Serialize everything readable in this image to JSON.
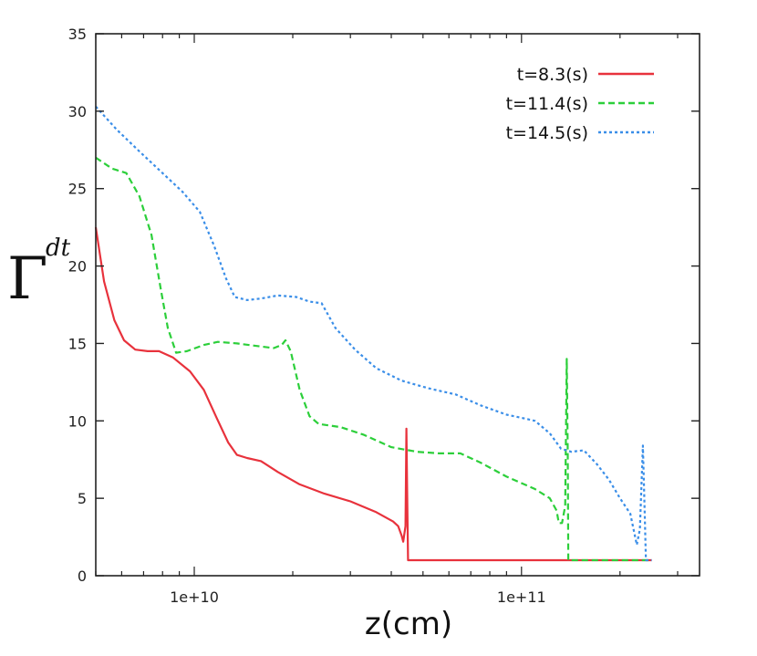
{
  "chart_data": {
    "type": "line",
    "title": "",
    "xlabel": "z(cm)",
    "ylabel": "Γ",
    "ylabel_subscript": "dt",
    "xscale": "log",
    "xlim": [
      5000000000.0,
      350000000000.0
    ],
    "ylim": [
      0,
      35
    ],
    "x_ticks": [
      {
        "value": 10000000000.0,
        "label": "1e+10"
      },
      {
        "value": 100000000000.0,
        "label": "1e+11"
      }
    ],
    "y_ticks": [
      0,
      5,
      10,
      15,
      20,
      25,
      30,
      35
    ],
    "y_tick_labels": [
      "0",
      "5",
      "10",
      "15",
      "20",
      "25",
      "30",
      "35"
    ],
    "grid": false,
    "legend_position": "top-right",
    "series": [
      {
        "name": "t=8.3(s)",
        "color": "#e8323c",
        "dash": "solid",
        "points": [
          [
            5000000000.0,
            22.5
          ],
          [
            5300000000.0,
            19.0
          ],
          [
            5700000000.0,
            16.5
          ],
          [
            6100000000.0,
            15.2
          ],
          [
            6600000000.0,
            14.6
          ],
          [
            7200000000.0,
            14.5
          ],
          [
            7800000000.0,
            14.5
          ],
          [
            8600000000.0,
            14.1
          ],
          [
            9700000000.0,
            13.2
          ],
          [
            10700000000.0,
            12.0
          ],
          [
            11700000000.0,
            10.2
          ],
          [
            12700000000.0,
            8.6
          ],
          [
            13500000000.0,
            7.8
          ],
          [
            14500000000.0,
            7.6
          ],
          [
            16000000000.0,
            7.4
          ],
          [
            18000000000.0,
            6.7
          ],
          [
            21000000000.0,
            5.9
          ],
          [
            25000000000.0,
            5.3
          ],
          [
            30000000000.0,
            4.8
          ],
          [
            36000000000.0,
            4.1
          ],
          [
            40500000000.0,
            3.5
          ],
          [
            42000000000.0,
            3.2
          ],
          [
            43000000000.0,
            2.6
          ],
          [
            43500000000.0,
            2.2
          ],
          [
            44200000000.0,
            3.2
          ],
          [
            44500000000.0,
            9.5
          ],
          [
            44700000000.0,
            6.0
          ],
          [
            45000000000.0,
            1.0
          ],
          [
            140000000000.0,
            1.0
          ],
          [
            250000000000.0,
            1.0
          ]
        ]
      },
      {
        "name": "t=11.4(s)",
        "color": "#2ccf3a",
        "dash": "dashed",
        "points": [
          [
            5000000000.0,
            27.0
          ],
          [
            5600000000.0,
            26.3
          ],
          [
            6200000000.0,
            26.0
          ],
          [
            6800000000.0,
            24.5
          ],
          [
            7400000000.0,
            22.0
          ],
          [
            7900000000.0,
            18.5
          ],
          [
            8300000000.0,
            16.0
          ],
          [
            8800000000.0,
            14.4
          ],
          [
            9500000000.0,
            14.5
          ],
          [
            10700000000.0,
            14.9
          ],
          [
            11800000000.0,
            15.1
          ],
          [
            13500000000.0,
            15.0
          ],
          [
            16000000000.0,
            14.8
          ],
          [
            17500000000.0,
            14.7
          ],
          [
            18500000000.0,
            14.9
          ],
          [
            19000000000.0,
            15.2
          ],
          [
            19700000000.0,
            14.5
          ],
          [
            21000000000.0,
            12.0
          ],
          [
            22500000000.0,
            10.3
          ],
          [
            24000000000.0,
            9.8
          ],
          [
            28000000000.0,
            9.6
          ],
          [
            33000000000.0,
            9.1
          ],
          [
            40000000000.0,
            8.3
          ],
          [
            48000000000.0,
            8.0
          ],
          [
            56000000000.0,
            7.9
          ],
          [
            65000000000.0,
            7.9
          ],
          [
            75000000000.0,
            7.3
          ],
          [
            90000000000.0,
            6.4
          ],
          [
            110000000000.0,
            5.6
          ],
          [
            122000000000.0,
            5.0
          ],
          [
            128000000000.0,
            4.2
          ],
          [
            130000000000.0,
            3.4
          ],
          [
            133000000000.0,
            3.4
          ],
          [
            136000000000.0,
            4.5
          ],
          [
            137500000000.0,
            14.0
          ],
          [
            138500000000.0,
            8.0
          ],
          [
            139000000000.0,
            1.0
          ],
          [
            180000000000.0,
            1.0
          ],
          [
            250000000000.0,
            1.0
          ]
        ]
      },
      {
        "name": "t=14.5(s)",
        "color": "#3a8ee8",
        "dash": "dotted",
        "points": [
          [
            5000000000.0,
            30.3
          ],
          [
            5800000000.0,
            28.8
          ],
          [
            6800000000.0,
            27.4
          ],
          [
            8000000000.0,
            26.0
          ],
          [
            9200000000.0,
            24.8
          ],
          [
            10400000000.0,
            23.5
          ],
          [
            11500000000.0,
            21.3
          ],
          [
            12500000000.0,
            19.2
          ],
          [
            13300000000.0,
            18.0
          ],
          [
            14500000000.0,
            17.8
          ],
          [
            16000000000.0,
            17.9
          ],
          [
            18000000000.0,
            18.1
          ],
          [
            20500000000.0,
            18.0
          ],
          [
            22500000000.0,
            17.7
          ],
          [
            24500000000.0,
            17.6
          ],
          [
            27000000000.0,
            16.0
          ],
          [
            31000000000.0,
            14.6
          ],
          [
            36000000000.0,
            13.4
          ],
          [
            43000000000.0,
            12.6
          ],
          [
            52000000000.0,
            12.1
          ],
          [
            63000000000.0,
            11.7
          ],
          [
            75000000000.0,
            11.0
          ],
          [
            90000000000.0,
            10.4
          ],
          [
            100000000000.0,
            10.2
          ],
          [
            110000000000.0,
            10.0
          ],
          [
            122000000000.0,
            9.2
          ],
          [
            132000000000.0,
            8.2
          ],
          [
            142000000000.0,
            8.0
          ],
          [
            155000000000.0,
            8.1
          ],
          [
            170000000000.0,
            7.2
          ],
          [
            185000000000.0,
            6.2
          ],
          [
            200000000000.0,
            5.0
          ],
          [
            215000000000.0,
            4.0
          ],
          [
            225000000000.0,
            2.0
          ],
          [
            230000000000.0,
            3.0
          ],
          [
            235000000000.0,
            8.4
          ],
          [
            238000000000.0,
            4.0
          ],
          [
            240000000000.0,
            1.0
          ],
          [
            250000000000.0,
            1.0
          ]
        ]
      }
    ]
  }
}
